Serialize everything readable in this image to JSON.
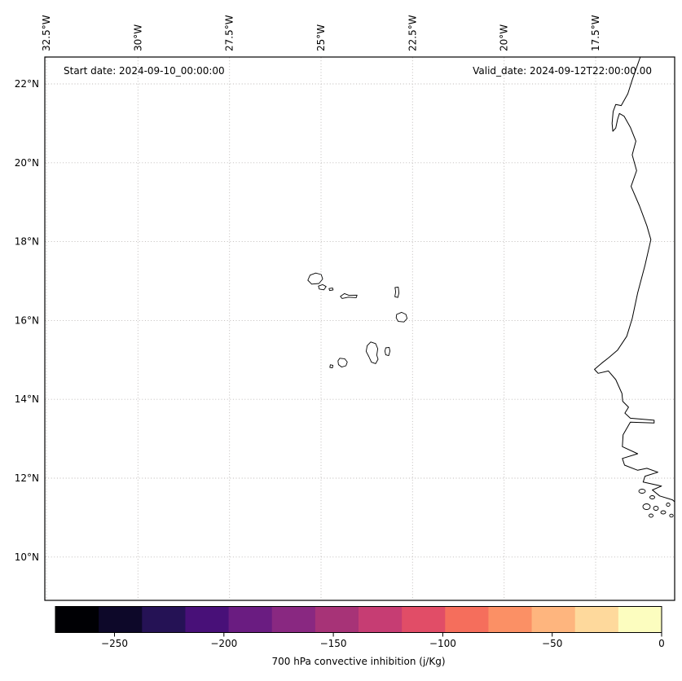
{
  "annotations": {
    "start_date": "Start date: 2024-09-10_00:00:00",
    "valid_date": "Valid_date: 2024-09-12T22:00:00.00"
  },
  "axes": {
    "top_ticks": [
      "32.5°W",
      "30°W",
      "27.5°W",
      "25°W",
      "22.5°W",
      "20°W",
      "17.5°W"
    ],
    "left_ticks": [
      "22°N",
      "20°N",
      "18°N",
      "16°N",
      "14°N",
      "12°N",
      "10°N"
    ]
  },
  "colorbar": {
    "label": "700 hPa convective inhibition (j/Kg)",
    "ticks": [
      "−250",
      "−200",
      "−150",
      "−100",
      "−50",
      "0"
    ],
    "tick_values": [
      -250,
      -200,
      -150,
      -100,
      -50,
      0
    ],
    "vmin": -277,
    "vmax": 0,
    "colormap": "magma",
    "colors": [
      "#000004",
      "#0d0829",
      "#251255",
      "#481078",
      "#6a1c81",
      "#892881",
      "#a73377",
      "#c63d73",
      "#e14d67",
      "#f56e5c",
      "#fb9065",
      "#feb57e",
      "#fed99c",
      "#fcfdbf"
    ]
  },
  "chart_data": {
    "type": "map",
    "field_label": "700 hPa convective inhibition (j/Kg)",
    "start_date": "2024-09-10_00:00:00",
    "valid_date": "2024-09-12T22:00:00.00",
    "longitude_ticks_deg": [
      -32.5,
      -30,
      -27.5,
      -25,
      -22.5,
      -20,
      -17.5
    ],
    "latitude_ticks_deg": [
      22,
      20,
      18,
      16,
      14,
      12,
      10
    ],
    "extent": {
      "lon_min": -32.55,
      "lon_max": -15.34,
      "lat_min": 8.9,
      "lat_max": 22.68
    },
    "gridlines": "dotted",
    "coastlines_shown": [
      "Cape Verde archipelago",
      "West African coast"
    ],
    "colorbar_range": [
      -277,
      0
    ],
    "colorbar_tick_values": [
      -250,
      -200,
      -150,
      -100,
      -50,
      0
    ],
    "filled_contours_visible": false
  }
}
